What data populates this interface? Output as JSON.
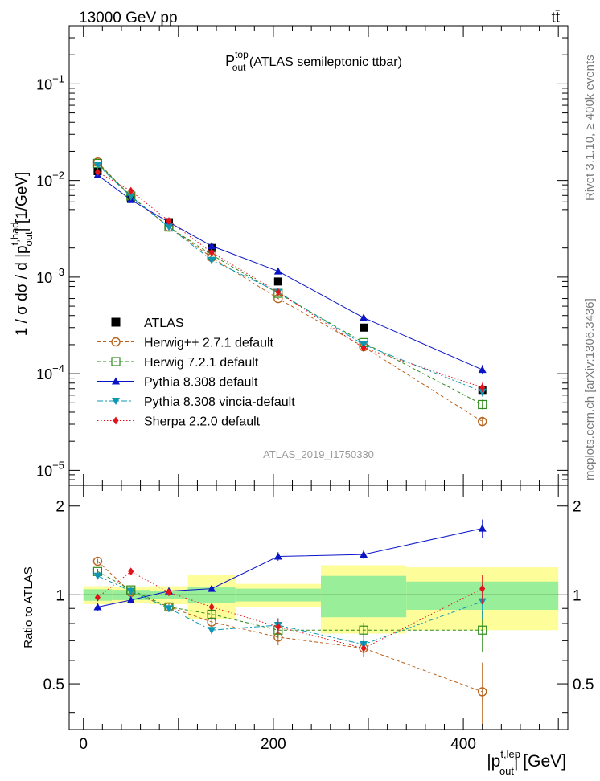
{
  "header": {
    "left": "13000 GeV pp",
    "right": "tt̄"
  },
  "side_texts": {
    "rivet": "Rivet 3.1.10, ≥ 400k events",
    "mcplots": "mcplots.cern.ch [arXiv:1306.3436]"
  },
  "chart_data": [
    {
      "type": "line",
      "panel": "main",
      "title": {
        "main": "P",
        "sup": "top",
        "sub": "out",
        "rest": " (ATLAS semileptonic ttbar)"
      },
      "watermark": "ATLAS_2019_I1750330",
      "ylabel": {
        "pre": "1 / σ dσ / d |p",
        "sup": "t,had",
        "sub": "out",
        "post": "| [1/GeV]"
      },
      "yscale": "log",
      "ylim": [
        7e-06,
        0.4
      ],
      "xlim": [
        -15,
        510
      ],
      "ytick_labels": [
        {
          "value": 1e-05,
          "base": "10",
          "exp": "−5"
        },
        {
          "value": 0.0001,
          "base": "10",
          "exp": "−4"
        },
        {
          "value": 0.001,
          "base": "10",
          "exp": "−3"
        },
        {
          "value": 0.01,
          "base": "10",
          "exp": "−2"
        },
        {
          "value": 0.1,
          "base": "10",
          "exp": "−1"
        }
      ],
      "bins": [
        [
          0,
          30
        ],
        [
          30,
          70
        ],
        [
          70,
          110
        ],
        [
          110,
          160
        ],
        [
          160,
          250
        ],
        [
          250,
          340
        ],
        [
          340,
          500
        ]
      ],
      "x": [
        15,
        50,
        90,
        135,
        205,
        295,
        420
      ],
      "series": [
        {
          "name": "ATLAS",
          "color": "#000000",
          "marker": "square-filled",
          "dash": "none",
          "values": [
            0.0125,
            0.0066,
            0.0037,
            0.002,
            0.0009,
            0.0003,
            6.8e-05
          ]
        },
        {
          "name": "Herwig++ 2.7.1 default",
          "color": "#b8621b",
          "marker": "circle-open",
          "dash": "4,3",
          "values": [
            0.0155,
            0.0068,
            0.0033,
            0.0016,
            0.0006,
            0.00019,
            3.2e-05
          ]
        },
        {
          "name": "Herwig 7.2.1 default",
          "color": "#2f8a1c",
          "marker": "square-open",
          "dash": "4,3",
          "values": [
            0.015,
            0.0069,
            0.0033,
            0.0017,
            0.00068,
            0.00021,
            4.8e-05
          ]
        },
        {
          "name": "Pythia 8.308 default",
          "color": "#0b15c8",
          "marker": "triangle-up",
          "dash": "none",
          "values": [
            0.0114,
            0.0063,
            0.0037,
            0.0021,
            0.00115,
            0.00038,
            0.00011
          ]
        },
        {
          "name": "Pythia 8.308 vincia-default",
          "color": "#0e97b3",
          "marker": "triangle-down",
          "dash": "7,3,2,3",
          "values": [
            0.0145,
            0.0068,
            0.0033,
            0.0015,
            0.0007,
            0.0002,
            6.5e-05
          ]
        },
        {
          "name": "Sherpa 2.2.0 default",
          "color": "#e3121b",
          "marker": "diamond",
          "dash": "1.5,2.5",
          "values": [
            0.0122,
            0.0078,
            0.0038,
            0.0018,
            0.0007,
            0.000185,
            7.2e-05
          ]
        }
      ]
    },
    {
      "type": "line",
      "panel": "ratio",
      "ylabel": "Ratio to ATLAS",
      "xlabel": {
        "pre": "|p",
        "sup": "t,lep",
        "sub": "out",
        "post": "| [GeV]"
      },
      "ylim": [
        0.35,
        2.35
      ],
      "xlim": [
        -15,
        510
      ],
      "ytick_labels": [
        "0.5",
        "1",
        "2"
      ],
      "ytick_values": [
        0.5,
        1,
        2
      ],
      "xtick_labels": [
        "0",
        "200",
        "400"
      ],
      "xtick_values": [
        0,
        200,
        400
      ],
      "band_inner": [
        0.045,
        0.04,
        0.03,
        0.06,
        0.05,
        0.16,
        0.11
      ],
      "band_outer": [
        0.07,
        0.06,
        0.07,
        0.17,
        0.09,
        0.26,
        0.24
      ],
      "x": [
        15,
        50,
        90,
        135,
        205,
        295,
        420
      ],
      "series": [
        {
          "name": "Herwig++ 2.7.1 default",
          "values": [
            1.3,
            1.02,
            0.91,
            0.81,
            0.72,
            0.66,
            0.47
          ]
        },
        {
          "name": "Herwig 7.2.1 default",
          "values": [
            1.2,
            1.04,
            0.91,
            0.86,
            0.76,
            0.76,
            0.76
          ]
        },
        {
          "name": "Pythia 8.308 default",
          "values": [
            0.91,
            0.96,
            1.03,
            1.05,
            1.35,
            1.37,
            1.68
          ]
        },
        {
          "name": "Pythia 8.308 vincia-default",
          "values": [
            1.16,
            1.03,
            0.9,
            0.76,
            0.79,
            0.68,
            0.95
          ]
        },
        {
          "name": "Sherpa 2.2.0 default",
          "values": [
            0.98,
            1.2,
            1.02,
            0.91,
            0.78,
            0.66,
            1.05
          ]
        }
      ]
    }
  ]
}
